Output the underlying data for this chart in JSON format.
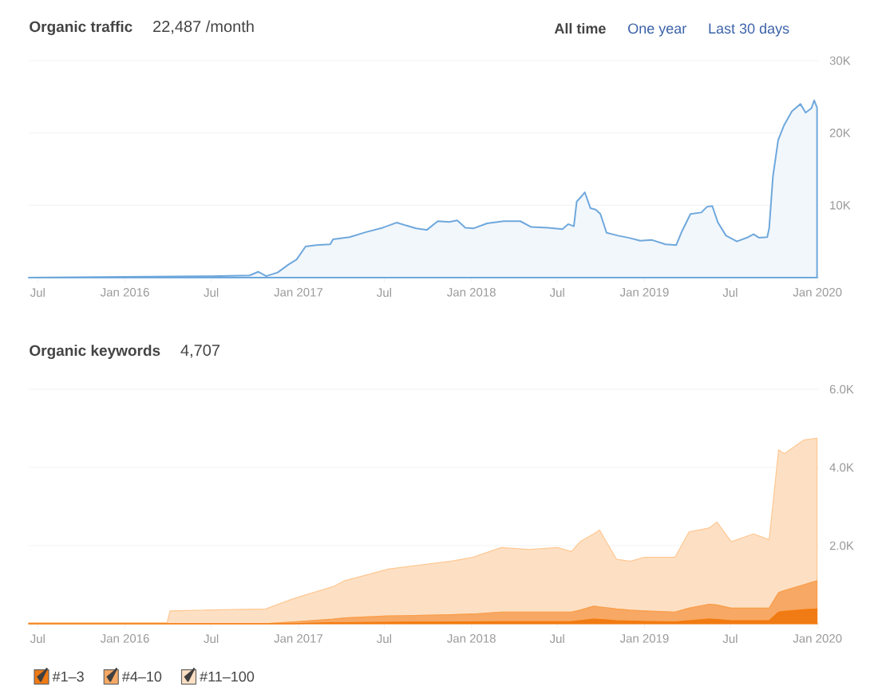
{
  "chart_data": [
    {
      "type": "area",
      "title": "Organic traffic",
      "subtitle": "22,487 /month",
      "annotations": [
        "All time",
        "One year",
        "Last 30 days"
      ],
      "xlim": [
        "2015-06-12",
        "2020-01-04"
      ],
      "xticks": [
        {
          "value": "2015-07",
          "label": "Jul"
        },
        {
          "value": "2016-01",
          "label": "Jan 2016"
        },
        {
          "value": "2016-07",
          "label": "Jul"
        },
        {
          "value": "2017-01",
          "label": "Jan 2017"
        },
        {
          "value": "2017-07",
          "label": "Jul"
        },
        {
          "value": "2018-01",
          "label": "Jan 2018"
        },
        {
          "value": "2018-07",
          "label": "Jul"
        },
        {
          "value": "2019-01",
          "label": "Jan 2019"
        },
        {
          "value": "2019-07",
          "label": "Jul"
        },
        {
          "value": "2020-01",
          "label": "Jan 2020"
        }
      ],
      "ylim": [
        0,
        30000
      ],
      "yticks": [
        {
          "value": 0,
          "label": null
        },
        {
          "value": 10000,
          "label": "10K"
        },
        {
          "value": 20000,
          "label": "20K"
        },
        {
          "value": 30000,
          "label": "30K"
        }
      ],
      "grid": "y",
      "series": [
        {
          "color": "#6fa8dc",
          "x": [
            "2015-06-12",
            "2016-07-01",
            "2016-09-20",
            "2016-10-08",
            "2016-10-25",
            "2016-11-18",
            "2016-12-11",
            "2016-12-28",
            "2017-01-16",
            "2017-02-08",
            "2017-03-09",
            "2017-03-15",
            "2017-04-19",
            "2017-05-24",
            "2017-06-28",
            "2017-07-27",
            "2017-09-06",
            "2017-09-29",
            "2017-10-22",
            "2017-11-15",
            "2017-12-02",
            "2017-12-19",
            "2018-01-05",
            "2018-02-03",
            "2018-03-10",
            "2018-04-14",
            "2018-05-07",
            "2018-06-11",
            "2018-07-12",
            "2018-07-24",
            "2018-08-05",
            "2018-08-11",
            "2018-08-22",
            "2018-08-28",
            "2018-09-09",
            "2018-09-20",
            "2018-09-30",
            "2018-10-13",
            "2018-11-06",
            "2018-11-29",
            "2018-12-23",
            "2019-01-17",
            "2019-02-14",
            "2019-03-09",
            "2019-03-21",
            "2019-04-08",
            "2019-05-01",
            "2019-05-13",
            "2019-05-24",
            "2019-06-05",
            "2019-06-22",
            "2019-07-15",
            "2019-08-08",
            "2019-08-19",
            "2019-08-31",
            "2019-09-17",
            "2019-09-21",
            "2019-09-29",
            "2019-10-10",
            "2019-10-22",
            "2019-11-08",
            "2019-11-26",
            "2019-12-07",
            "2019-12-19",
            "2019-12-25",
            "2019-12-31"
          ],
          "values": [
            0,
            200,
            300,
            800,
            200,
            700,
            1800,
            2500,
            4300,
            4500,
            4600,
            5300,
            5600,
            6300,
            6900,
            7600,
            6800,
            6600,
            7800,
            7700,
            7900,
            6900,
            6800,
            7500,
            7800,
            7800,
            7000,
            6900,
            6700,
            7400,
            7100,
            10500,
            11300,
            11800,
            9600,
            9400,
            8800,
            6200,
            5800,
            5500,
            5100,
            5200,
            4600,
            4500,
            6400,
            8800,
            9000,
            9800,
            9900,
            7600,
            5800,
            5000,
            5600,
            6000,
            5500,
            5600,
            6800,
            14000,
            19000,
            21000,
            23000,
            24000,
            22800,
            23400,
            24500,
            23500
          ]
        }
      ]
    },
    {
      "type": "area",
      "title": "Organic keywords",
      "subtitle": "4,707",
      "stacked": true,
      "legend": "bottom",
      "x": [
        "2015-06-12",
        "2016-03-30",
        "2016-04-05",
        "2016-10-24",
        "2016-12-23",
        "2017-03-15",
        "2017-04-08",
        "2017-07-10",
        "2017-11-18",
        "2018-01-04",
        "2018-03-05",
        "2018-05-03",
        "2018-07-01",
        "2018-07-31",
        "2018-08-18",
        "2018-09-16",
        "2018-09-28",
        "2018-11-03",
        "2018-12-02",
        "2019-01-01",
        "2019-03-06",
        "2019-04-05",
        "2019-05-17",
        "2019-06-03",
        "2019-07-03",
        "2019-08-19",
        "2019-09-21",
        "2019-10-11",
        "2019-10-23",
        "2019-12-03",
        "2019-12-31"
      ],
      "xlim": [
        "2015-06-12",
        "2020-01-04"
      ],
      "xticks": [
        {
          "value": "2015-07",
          "label": "Jul"
        },
        {
          "value": "2016-01",
          "label": "Jan 2016"
        },
        {
          "value": "2016-07",
          "label": "Jul"
        },
        {
          "value": "2017-01",
          "label": "Jan 2017"
        },
        {
          "value": "2017-07",
          "label": "Jul"
        },
        {
          "value": "2018-01",
          "label": "Jan 2018"
        },
        {
          "value": "2018-07",
          "label": "Jul"
        },
        {
          "value": "2019-01",
          "label": "Jan 2019"
        },
        {
          "value": "2019-07",
          "label": "Jul"
        },
        {
          "value": "2020-01",
          "label": "Jan 2020"
        }
      ],
      "ylim": [
        0,
        6000
      ],
      "yticks": [
        {
          "value": 0,
          "label": null
        },
        {
          "value": 2000,
          "label": "2.0K"
        },
        {
          "value": 4000,
          "label": "4.0K"
        },
        {
          "value": 6000,
          "label": "6.0K"
        }
      ],
      "grid": "y",
      "series": [
        {
          "name": "#1–3",
          "color": "#f07a13",
          "values": [
            0,
            0,
            0,
            0,
            0,
            30,
            30,
            40,
            45,
            50,
            55,
            55,
            55,
            60,
            80,
            120,
            110,
            80,
            70,
            60,
            50,
            80,
            120,
            110,
            80,
            80,
            80,
            300,
            320,
            360,
            380
          ]
        },
        {
          "name": "#4–10",
          "color": "#f7a864",
          "values": [
            0,
            0,
            0,
            0,
            50,
            90,
            120,
            160,
            185,
            200,
            245,
            245,
            245,
            240,
            270,
            330,
            320,
            300,
            280,
            270,
            250,
            320,
            380,
            370,
            320,
            320,
            320,
            500,
            530,
            640,
            720
          ]
        },
        {
          "name": "#11–100",
          "color": "#fde0c4",
          "values": [
            30,
            30,
            330,
            380,
            600,
            830,
            950,
            1200,
            1370,
            1450,
            1650,
            1600,
            1650,
            1550,
            1750,
            1850,
            1970,
            1270,
            1250,
            1370,
            1400,
            1950,
            1950,
            2120,
            1700,
            1900,
            1750,
            3650,
            3500,
            3700,
            3650
          ]
        }
      ]
    }
  ]
}
